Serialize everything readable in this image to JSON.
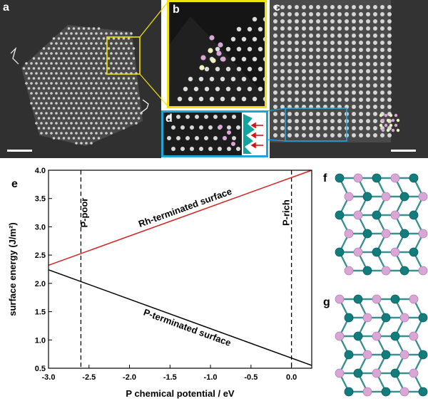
{
  "figure": {
    "panels": [
      {
        "id": "a",
        "label": "a"
      },
      {
        "id": "b",
        "label": "b"
      },
      {
        "id": "c",
        "label": "c"
      },
      {
        "id": "d",
        "label": "d"
      },
      {
        "id": "e",
        "label": "e"
      },
      {
        "id": "f",
        "label": "f"
      },
      {
        "id": "g",
        "label": "g"
      }
    ],
    "colors": {
      "inset_box_yellow": "#f2e20c",
      "inset_box_blue": "#1fa4d6",
      "rh_atom": "#137c7c",
      "p_atom": "#d9a6d6",
      "rh_line": "#d42020",
      "p_line": "#000000",
      "arrow_red": "#d01818",
      "profile_teal": "#12a5a0"
    }
  },
  "chart_data": {
    "type": "line",
    "xlabel": "P chemical potential / eV",
    "ylabel": "surface energy (J/m²)",
    "xlim": [
      -3.0,
      0.25
    ],
    "ylim": [
      0.5,
      4.0
    ],
    "x_ticks": [
      -3.0,
      -2.5,
      -2.0,
      -1.5,
      -1.0,
      -0.5,
      0.0
    ],
    "x_tick_labels": [
      "-3.0",
      "-2.5",
      "-2.0",
      "-1.5",
      "-1.0",
      "-0.5",
      "0.0"
    ],
    "y_ticks": [
      0.5,
      1.0,
      1.5,
      2.0,
      2.5,
      3.0,
      3.5,
      4.0
    ],
    "y_tick_labels": [
      "0.5",
      "1.0",
      "1.5",
      "2.0",
      "2.5",
      "3.0",
      "3.5",
      "4.0"
    ],
    "series": [
      {
        "name": "Rh-terminated surface",
        "x": [
          -3.0,
          0.25
        ],
        "y": [
          2.32,
          4.0
        ],
        "color": "#d42020"
      },
      {
        "name": "P-terminated surface",
        "x": [
          -3.0,
          0.25
        ],
        "y": [
          2.24,
          0.55
        ],
        "color": "#000000"
      }
    ],
    "vlines": [
      {
        "x": -2.6,
        "label": "P-poor"
      },
      {
        "x": 0.0,
        "label": "P-rich"
      }
    ]
  }
}
